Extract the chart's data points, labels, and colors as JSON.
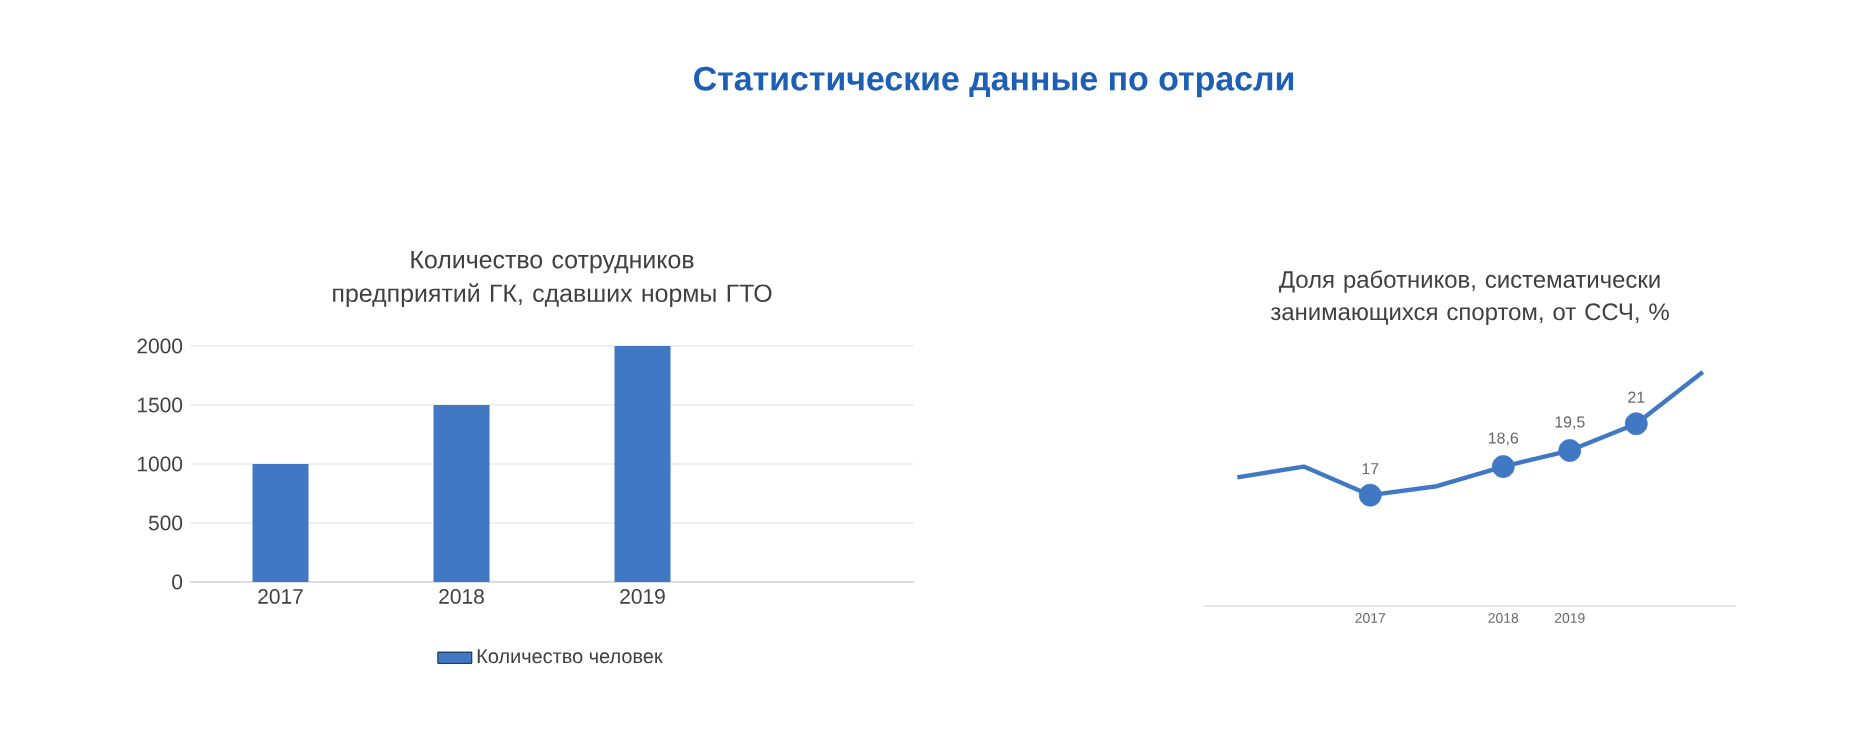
{
  "chart_data": [
    {
      "type": "bar",
      "title": "Количество сотрудников предприятий ГК, сдавших нормы ГТО",
      "annotations": [
        "Статистические данные по отрасли"
      ],
      "categories": [
        "2017",
        "2018",
        "2019",
        null
      ],
      "series": [
        {
          "name": "Количество человек",
          "color": "#4178c4",
          "values": [
            1000,
            1500,
            2000,
            null
          ]
        }
      ],
      "ylim": [
        0,
        2000
      ],
      "yticks": [
        0,
        500,
        1000,
        1500,
        2000
      ],
      "grid": "y",
      "legend": "bottom"
    },
    {
      "type": "line",
      "title": "Доля работников, систематически  занимающихся спортом, от ССЧ, %",
      "legend": false,
      "categories": [
        null,
        null,
        "2017",
        null,
        "2018",
        "2019",
        null,
        null
      ],
      "series": [
        {
          "type": "line",
          "color": "#4178c4",
          "marker": "none",
          "values": [
            18,
            18.6,
            17,
            17.5,
            18.6,
            19.5,
            21,
            23.9
          ]
        },
        {
          "type": "scatter",
          "color": "#4178c4",
          "marker": "circle",
          "values": [
            null,
            null,
            17,
            null,
            18.6,
            19.5,
            21,
            null
          ],
          "value_labels": [
            null,
            null,
            "17",
            null,
            "18,6",
            "19,5",
            "21",
            null
          ]
        }
      ]
    }
  ]
}
